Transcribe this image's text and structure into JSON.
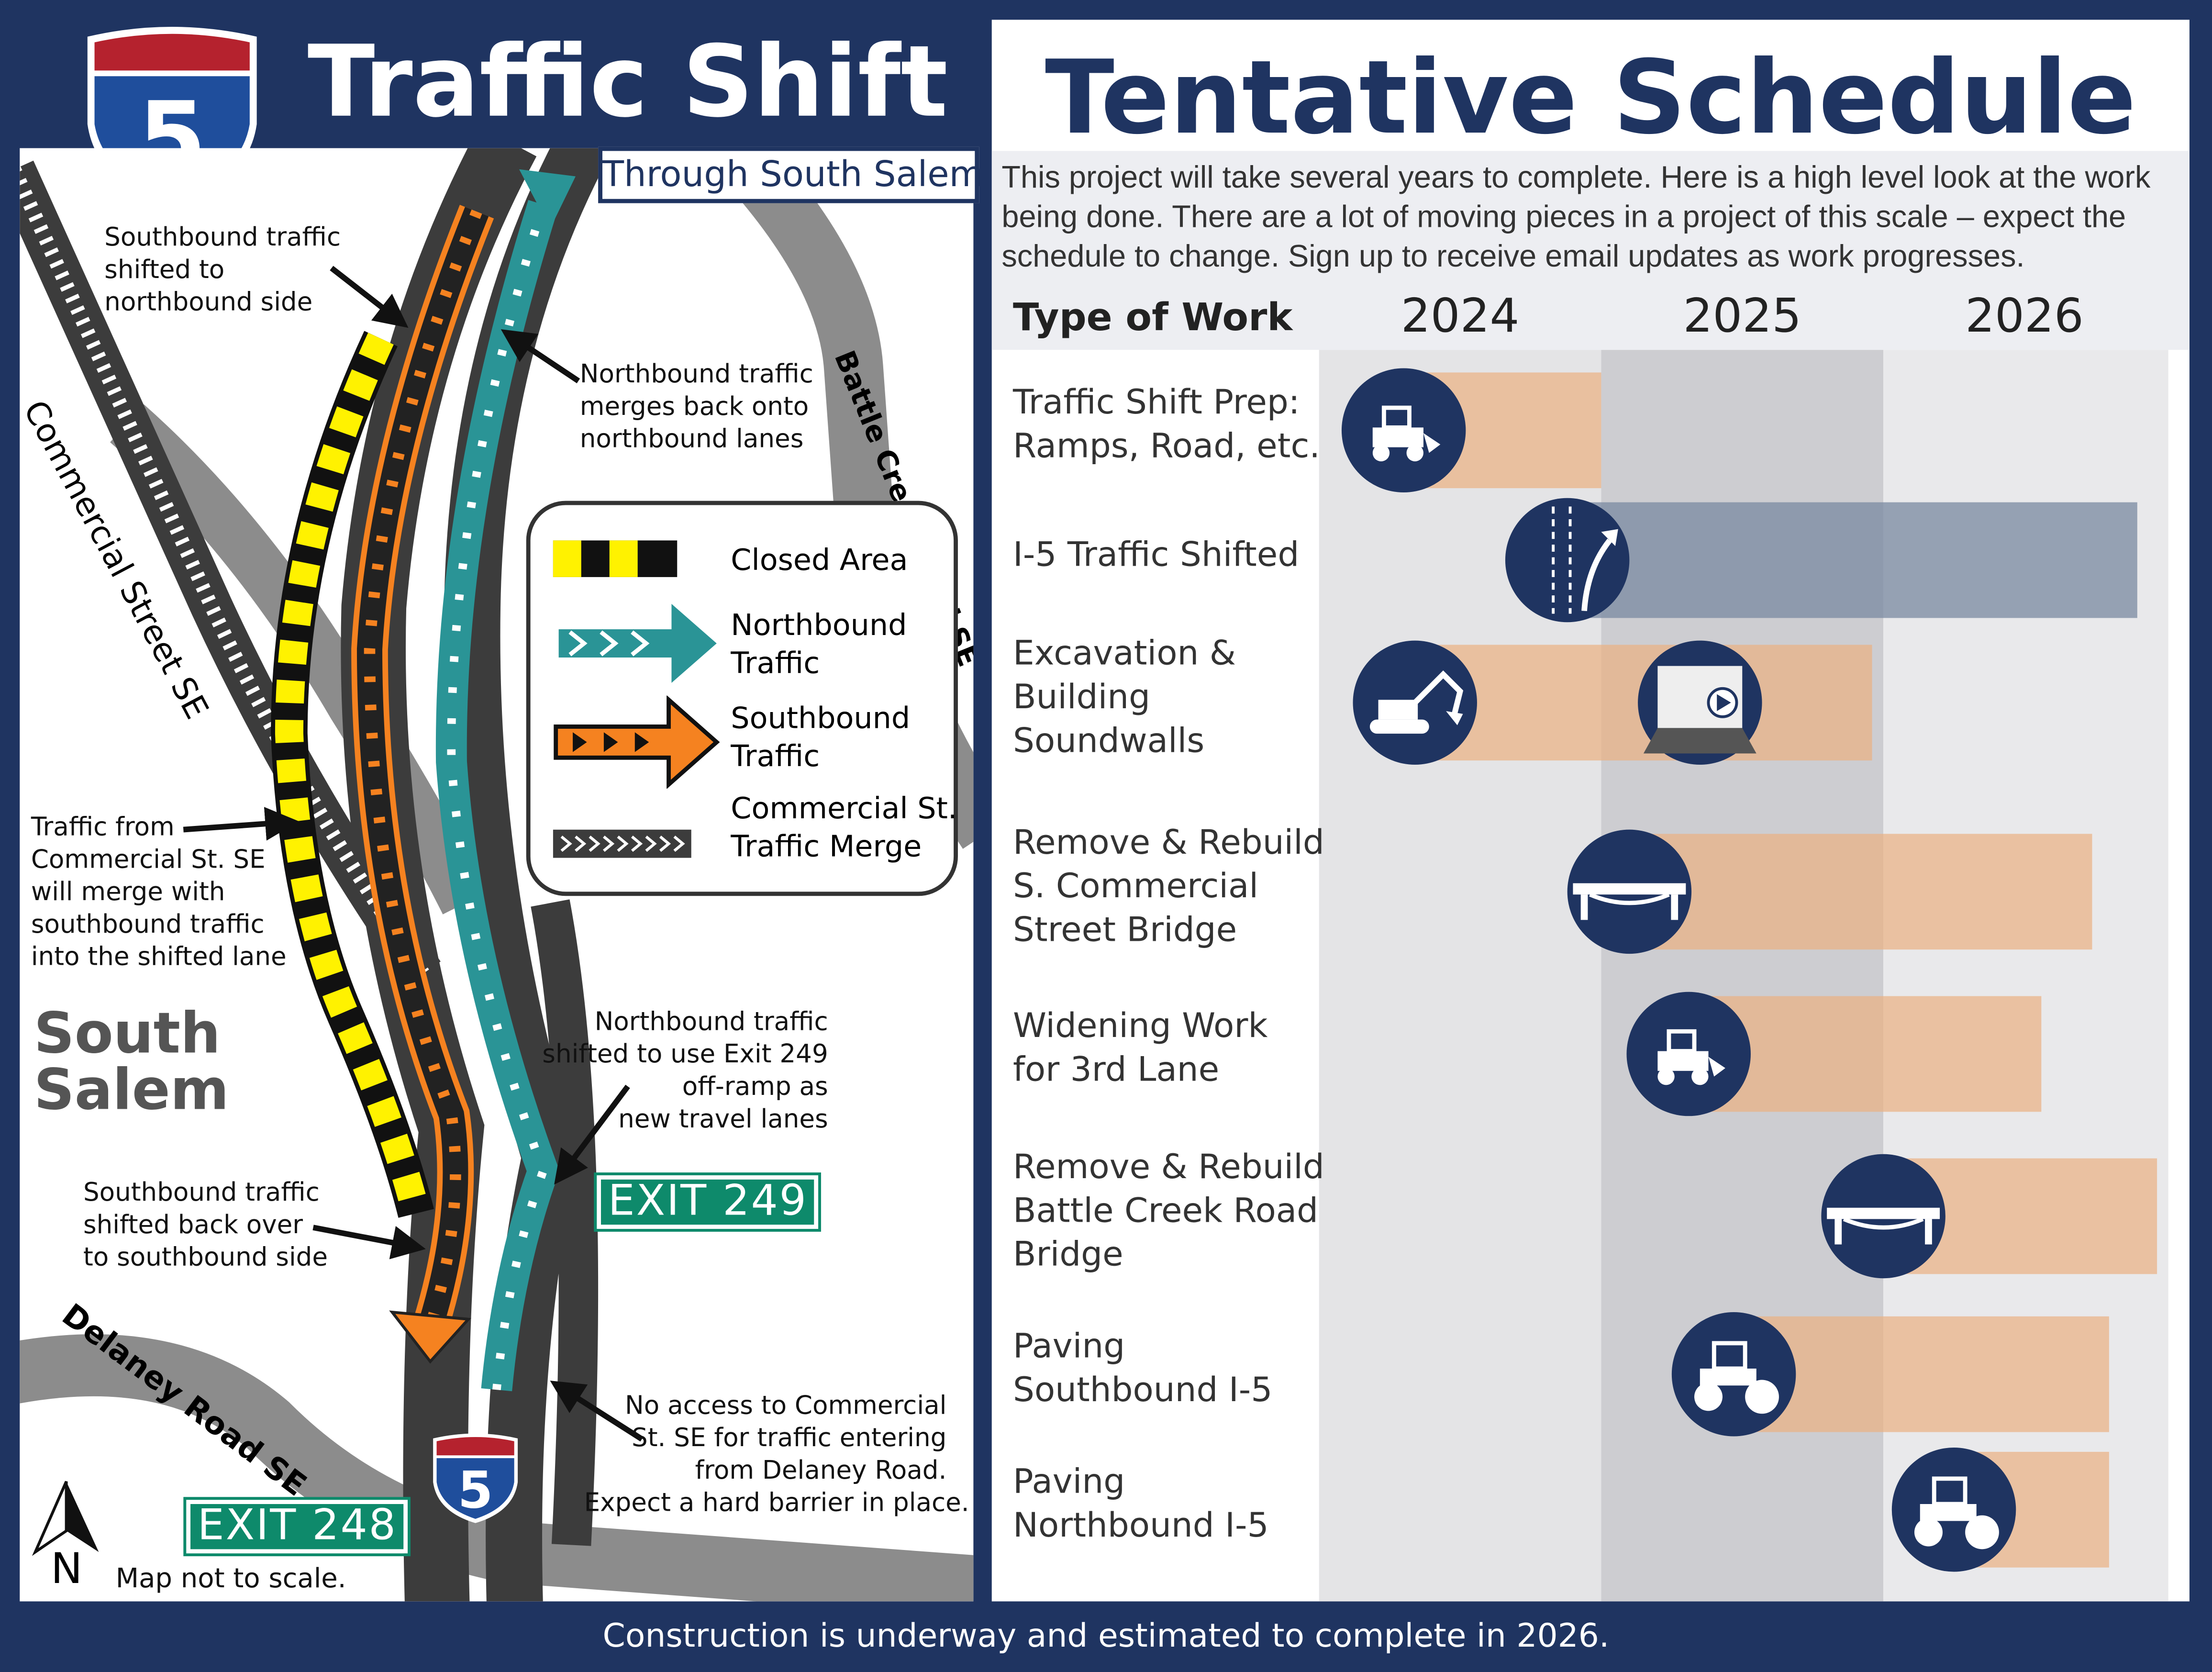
{
  "header": {
    "shield_number": "5",
    "title": "Traffic Shift",
    "subtitle": "Through South Salem"
  },
  "map": {
    "roads": {
      "commercial": "Commercial Street SE",
      "battle_creek": "Battle Creek Road SE",
      "delaney": "Delaney Road SE"
    },
    "area": "South Salem",
    "annotations": {
      "sb_shift": [
        "Southbound traffic",
        "shifted to",
        "northbound side"
      ],
      "nb_merge": [
        "Northbound traffic",
        "merges back onto",
        "northbound lanes"
      ],
      "commercial_merge": [
        "Traffic from",
        "Commercial St. SE",
        "will merge with",
        "southbound traffic",
        "into the shifted lane"
      ],
      "nb_exit": [
        "Northbound traffic",
        "shifted to use Exit 249",
        "off-ramp as",
        "new travel lanes"
      ],
      "sb_back": [
        "Southbound traffic",
        "shifted back over",
        "to southbound side"
      ],
      "no_access": [
        "No access to Commercial",
        "St. SE for traffic entering",
        "from Delaney Road.",
        "Expect a hard barrier in place."
      ]
    },
    "legend": [
      {
        "label": "Closed Area",
        "icon": "closed-area-swatch"
      },
      {
        "label": "Northbound\nTraffic",
        "icon": "northbound-arrow"
      },
      {
        "label": "Southbound\nTraffic",
        "icon": "southbound-arrow"
      },
      {
        "label": "Commercial St.\nTraffic Merge",
        "icon": "merge-chevrons"
      }
    ],
    "exit_249": "EXIT 249",
    "exit_248": "EXIT 248",
    "shield_number": "5",
    "north": "N",
    "scale_note": "Map not to scale.",
    "colors": {
      "northbound": "#2a9496",
      "southbound": "#f58220",
      "closed_yellow": "#fff200",
      "road_dark": "#3c3c3c",
      "road_gray": "#8c8c8c",
      "exit_green": "#0e8a6b"
    }
  },
  "schedule": {
    "title": "Tentative Schedule",
    "description": "This project will take several years to complete. Here is a high level look at the work being done. There are a lot of moving pieces in a project of this scale – expect the schedule to change. Sign up to receive email updates as work progresses.",
    "type_header": "Type of Work",
    "years": [
      "2024",
      "2025",
      "2026"
    ],
    "items": [
      {
        "label": [
          "Traffic Shift Prep:",
          "Ramps, Road, etc."
        ],
        "start": 2024.33,
        "end": 2025.0,
        "icons": [
          {
            "name": "loader-icon",
            "at": 2024.3
          }
        ]
      },
      {
        "label": [
          "I-5 Traffic Shifted"
        ],
        "start": 2024.88,
        "end": 2026.9,
        "kind": "shift",
        "icons": [
          {
            "name": "lane-shift-icon",
            "at": 2024.88
          }
        ]
      },
      {
        "label": [
          "Excavation &",
          "Building",
          "Soundwalls"
        ],
        "start": 2024.34,
        "end": 2025.96,
        "icons": [
          {
            "name": "excavator-icon",
            "at": 2024.34
          },
          {
            "name": "soundwall-icon",
            "at": 2025.35
          }
        ]
      },
      {
        "label": [
          "Remove & Rebuild",
          "S. Commercial",
          "Street Bridge"
        ],
        "start": 2025.1,
        "end": 2026.74,
        "icons": [
          {
            "name": "bridge-icon",
            "at": 2025.1
          }
        ]
      },
      {
        "label": [
          "Widening Work",
          "for 3rd Lane"
        ],
        "start": 2025.31,
        "end": 2026.56,
        "icons": [
          {
            "name": "loader-icon",
            "at": 2025.31
          }
        ]
      },
      {
        "label": [
          "Remove & Rebuild",
          "Battle Creek Road",
          "Bridge"
        ],
        "start": 2026.0,
        "end": 2026.97,
        "icons": [
          {
            "name": "bridge-icon",
            "at": 2026.0
          }
        ]
      },
      {
        "label": [
          "Paving",
          "Southbound I-5"
        ],
        "start": 2025.47,
        "end": 2026.8,
        "icons": [
          {
            "name": "roller-icon",
            "at": 2025.47
          }
        ]
      },
      {
        "label": [
          "Paving",
          "Northbound I-5"
        ],
        "start": 2026.25,
        "end": 2026.8,
        "icons": [
          {
            "name": "roller-icon",
            "at": 2026.25
          }
        ]
      }
    ],
    "colors": {
      "bar": "#eab284",
      "shift_bar": "#7888a0",
      "icon_bg": "#1f3461",
      "col_2024": "#e4e4e6",
      "col_2025": "#cdcdd1",
      "col_2026": "#e9e9eb"
    }
  },
  "footer": "Construction is underway and estimated to complete in 2026."
}
